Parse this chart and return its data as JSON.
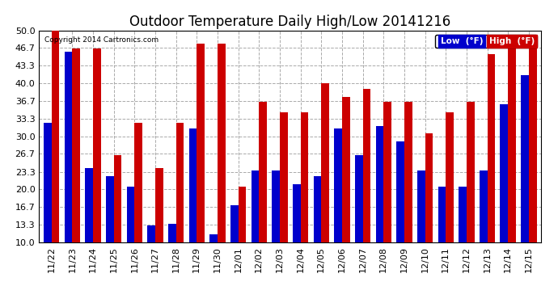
{
  "title": "Outdoor Temperature Daily High/Low 20141216",
  "copyright": "Copyright 2014 Cartronics.com",
  "legend_low": "Low  (°F)",
  "legend_high": "High  (°F)",
  "categories": [
    "11/22",
    "11/23",
    "11/24",
    "11/25",
    "11/26",
    "11/27",
    "11/28",
    "11/29",
    "11/30",
    "12/01",
    "12/02",
    "12/03",
    "12/04",
    "12/05",
    "12/06",
    "12/07",
    "12/08",
    "12/09",
    "12/10",
    "12/11",
    "12/12",
    "12/13",
    "12/14",
    "12/15"
  ],
  "low_values": [
    32.5,
    46.0,
    24.0,
    22.5,
    20.5,
    13.2,
    13.5,
    31.5,
    11.5,
    17.0,
    23.5,
    23.5,
    21.0,
    22.5,
    31.5,
    26.5,
    32.0,
    29.0,
    23.5,
    20.5,
    20.5,
    23.5,
    36.0,
    41.5
  ],
  "high_values": [
    50.0,
    46.5,
    46.5,
    26.5,
    32.5,
    24.0,
    32.5,
    47.5,
    47.5,
    20.5,
    36.5,
    34.5,
    34.5,
    40.0,
    37.5,
    39.0,
    36.5,
    36.5,
    30.5,
    34.5,
    36.5,
    45.5,
    48.5,
    46.5
  ],
  "low_color": "#0000cc",
  "high_color": "#cc0000",
  "background_color": "#ffffff",
  "plot_bg_color": "#ffffff",
  "grid_color": "#aaaaaa",
  "ymin": 10.0,
  "ylim": [
    10.0,
    50.0
  ],
  "yticks": [
    10.0,
    13.3,
    16.7,
    20.0,
    23.3,
    26.7,
    30.0,
    33.3,
    36.7,
    40.0,
    43.3,
    46.7,
    50.0
  ],
  "ytick_labels": [
    "10.0",
    "13.3",
    "16.7",
    "20.0",
    "23.3",
    "26.7",
    "30.0",
    "33.3",
    "36.7",
    "40.0",
    "43.3",
    "46.7",
    "50.0"
  ],
  "title_fontsize": 12,
  "tick_fontsize": 8,
  "bar_width": 0.38
}
